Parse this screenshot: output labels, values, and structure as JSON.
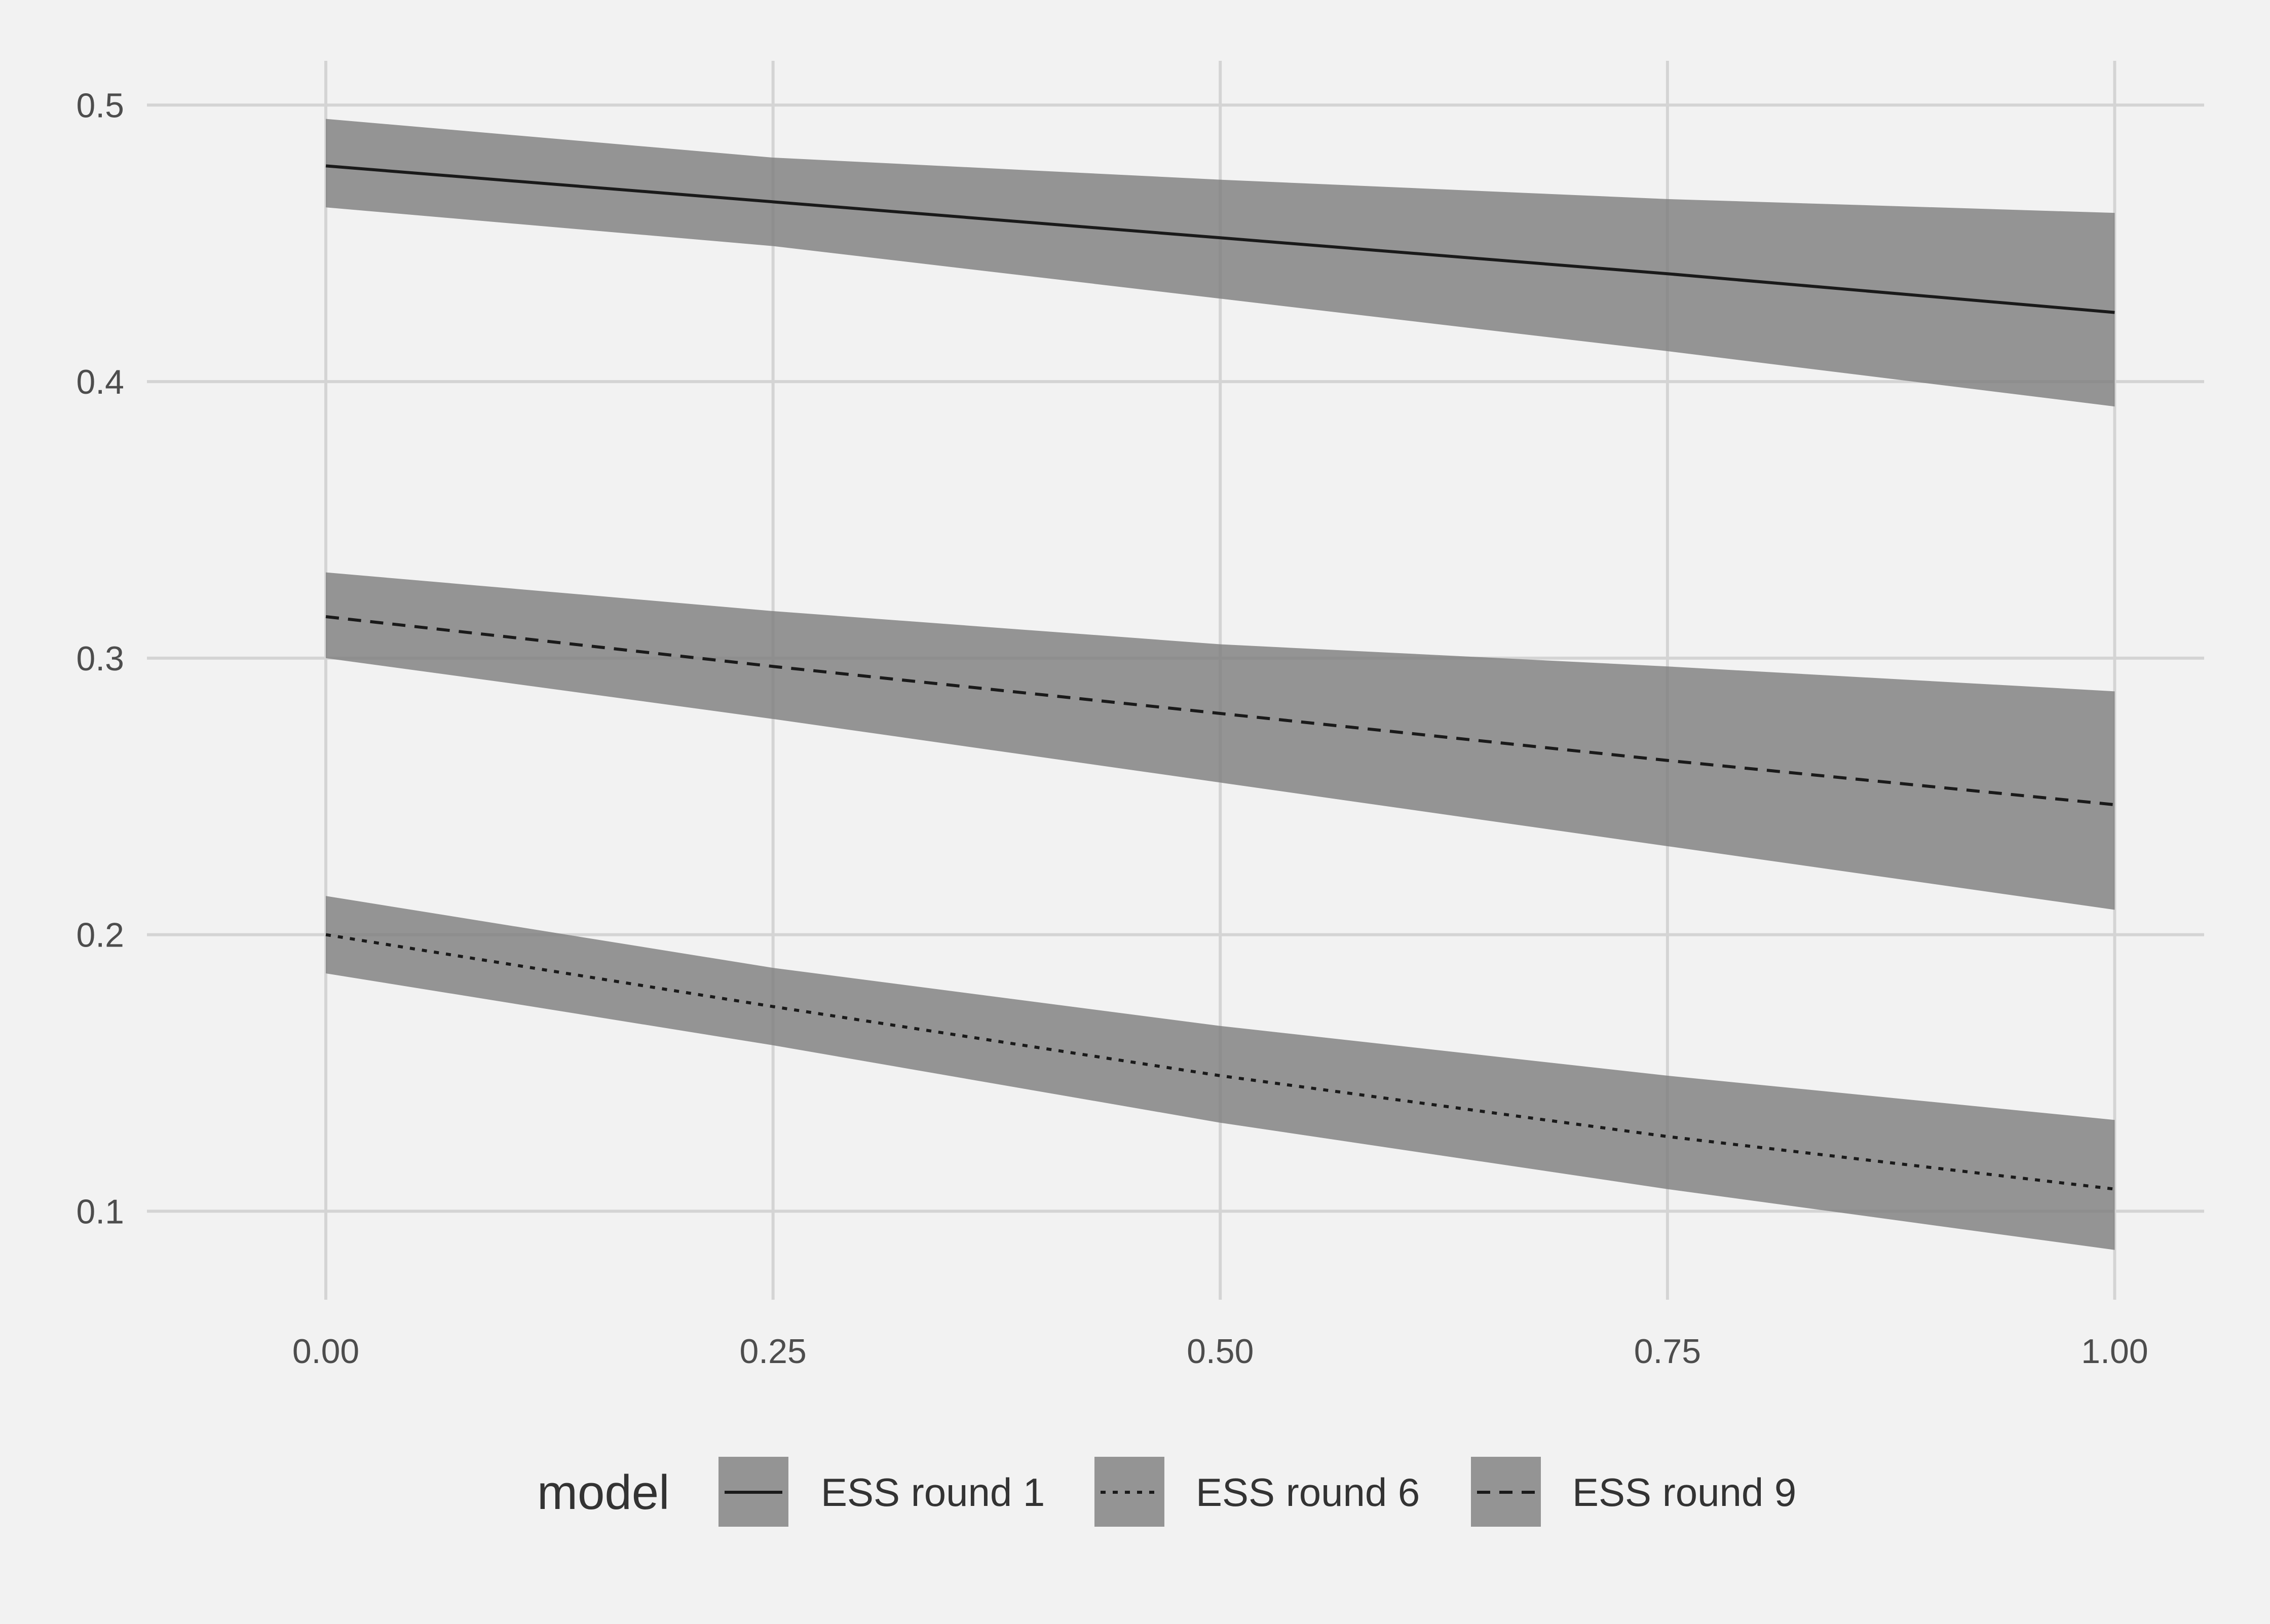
{
  "chart_data": {
    "type": "line",
    "title": "",
    "xlabel": "",
    "ylabel": "",
    "xlim": [
      -0.1,
      1.05
    ],
    "ylim": [
      0.068,
      0.516
    ],
    "x_ticks": [
      0,
      0.25,
      0.5,
      0.75,
      1
    ],
    "x_tick_labels": [
      "0.00",
      "0.25",
      "0.50",
      "0.75",
      "1.00"
    ],
    "y_ticks": [
      0.1,
      0.2,
      0.3,
      0.4,
      0.5
    ],
    "y_tick_labels": [
      "0.1",
      "0.2",
      "0.3",
      "0.4",
      "0.5"
    ],
    "grid": true,
    "legend": {
      "position": "bottom",
      "title": "model",
      "entries": [
        "ESS round 1",
        "ESS round 6",
        "ESS round 9"
      ]
    },
    "series": [
      {
        "name": "ESS round 1",
        "linetype": "solid",
        "x": [
          0,
          0.25,
          0.5,
          0.75,
          1
        ],
        "y": [
          0.478,
          0.465,
          0.452,
          0.439,
          0.425
        ],
        "lower": [
          0.463,
          0.449,
          0.43,
          0.411,
          0.391
        ],
        "upper": [
          0.495,
          0.481,
          0.473,
          0.466,
          0.461
        ]
      },
      {
        "name": "ESS round 6",
        "linetype": "dotted",
        "x": [
          0,
          0.25,
          0.5,
          0.75,
          1
        ],
        "y": [
          0.2,
          0.174,
          0.149,
          0.127,
          0.108
        ],
        "lower": [
          0.186,
          0.16,
          0.132,
          0.108,
          0.086
        ],
        "upper": [
          0.214,
          0.188,
          0.167,
          0.149,
          0.133
        ]
      },
      {
        "name": "ESS round 9",
        "linetype": "dashed",
        "x": [
          0,
          0.25,
          0.5,
          0.75,
          1
        ],
        "y": [
          0.315,
          0.297,
          0.28,
          0.263,
          0.247
        ],
        "lower": [
          0.3,
          0.278,
          0.255,
          0.232,
          0.209
        ],
        "upper": [
          0.331,
          0.317,
          0.305,
          0.297,
          0.288
        ]
      }
    ],
    "colors": {
      "background": "#f2f2f2",
      "grid": "#d4d4d4",
      "ribbon": "#7f7f7f",
      "line": "#1a1a1a",
      "text": "#4d4d4d"
    }
  }
}
